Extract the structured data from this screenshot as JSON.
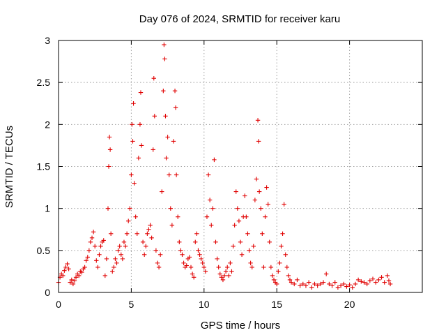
{
  "chart_data": {
    "type": "scatter",
    "title": "Day 076 of 2024, SRMTID for receiver karu",
    "xlabel": "GPS time / hours",
    "ylabel": "SRMTID / TECUs",
    "xlim": [
      0,
      25
    ],
    "ylim": [
      0,
      3
    ],
    "xticks": [
      0,
      5,
      10,
      15,
      20
    ],
    "xtick_labels": [
      "0",
      "5",
      "10",
      "15",
      "20"
    ],
    "yticks": [
      0,
      0.5,
      1,
      1.5,
      2,
      2.5,
      3
    ],
    "ytick_labels": [
      "0",
      "0.5",
      "1",
      "1.5",
      "2",
      "2.5",
      "3"
    ],
    "grid": true,
    "marker": "plus",
    "color": "#e00000",
    "series": [
      {
        "name": "karu",
        "points": [
          [
            0.0,
            0.12
          ],
          [
            0.1,
            0.18
          ],
          [
            0.2,
            0.22
          ],
          [
            0.3,
            0.2
          ],
          [
            0.4,
            0.26
          ],
          [
            0.5,
            0.3
          ],
          [
            0.6,
            0.34
          ],
          [
            0.7,
            0.28
          ],
          [
            0.8,
            0.12
          ],
          [
            0.9,
            0.15
          ],
          [
            1.0,
            0.1
          ],
          [
            1.1,
            0.14
          ],
          [
            1.2,
            0.18
          ],
          [
            1.3,
            0.22
          ],
          [
            1.4,
            0.2
          ],
          [
            1.5,
            0.25
          ],
          [
            1.6,
            0.24
          ],
          [
            1.7,
            0.28
          ],
          [
            1.8,
            0.3
          ],
          [
            1.9,
            0.38
          ],
          [
            2.0,
            0.42
          ],
          [
            2.1,
            0.5
          ],
          [
            2.2,
            0.6
          ],
          [
            2.3,
            0.65
          ],
          [
            2.4,
            0.72
          ],
          [
            2.5,
            0.55
          ],
          [
            2.6,
            0.38
          ],
          [
            2.7,
            0.3
          ],
          [
            2.8,
            0.45
          ],
          [
            2.9,
            0.55
          ],
          [
            3.0,
            0.6
          ],
          [
            3.1,
            0.62
          ],
          [
            3.2,
            0.2
          ],
          [
            3.3,
            0.4
          ],
          [
            3.4,
            1.0
          ],
          [
            3.45,
            1.5
          ],
          [
            3.5,
            1.85
          ],
          [
            3.55,
            1.7
          ],
          [
            3.6,
            0.7
          ],
          [
            3.7,
            0.25
          ],
          [
            3.8,
            0.3
          ],
          [
            3.9,
            0.4
          ],
          [
            4.0,
            0.35
          ],
          [
            4.1,
            0.5
          ],
          [
            4.2,
            0.55
          ],
          [
            4.3,
            0.45
          ],
          [
            4.4,
            0.4
          ],
          [
            4.5,
            0.6
          ],
          [
            4.6,
            0.55
          ],
          [
            4.7,
            0.7
          ],
          [
            4.8,
            0.85
          ],
          [
            4.9,
            1.0
          ],
          [
            5.0,
            1.4
          ],
          [
            5.05,
            2.0
          ],
          [
            5.1,
            1.8
          ],
          [
            5.15,
            2.25
          ],
          [
            5.2,
            1.3
          ],
          [
            5.3,
            0.9
          ],
          [
            5.4,
            0.7
          ],
          [
            5.5,
            1.6
          ],
          [
            5.6,
            2.0
          ],
          [
            5.65,
            2.38
          ],
          [
            5.7,
            1.75
          ],
          [
            5.8,
            0.6
          ],
          [
            5.9,
            0.45
          ],
          [
            6.0,
            0.55
          ],
          [
            6.1,
            0.7
          ],
          [
            6.2,
            0.75
          ],
          [
            6.3,
            0.8
          ],
          [
            6.4,
            0.65
          ],
          [
            6.5,
            1.7
          ],
          [
            6.55,
            2.55
          ],
          [
            6.6,
            2.1
          ],
          [
            6.7,
            0.5
          ],
          [
            6.8,
            0.35
          ],
          [
            6.9,
            0.3
          ],
          [
            7.0,
            0.45
          ],
          [
            7.1,
            1.2
          ],
          [
            7.2,
            2.4
          ],
          [
            7.25,
            2.95
          ],
          [
            7.3,
            2.78
          ],
          [
            7.35,
            2.1
          ],
          [
            7.4,
            1.6
          ],
          [
            7.5,
            1.85
          ],
          [
            7.6,
            1.4
          ],
          [
            7.7,
            1.0
          ],
          [
            7.8,
            0.8
          ],
          [
            7.9,
            1.8
          ],
          [
            8.0,
            2.4
          ],
          [
            8.05,
            2.2
          ],
          [
            8.1,
            1.4
          ],
          [
            8.2,
            0.9
          ],
          [
            8.3,
            0.6
          ],
          [
            8.4,
            0.5
          ],
          [
            8.5,
            0.45
          ],
          [
            8.6,
            0.35
          ],
          [
            8.7,
            0.3
          ],
          [
            8.8,
            0.32
          ],
          [
            8.9,
            0.4
          ],
          [
            9.0,
            0.42
          ],
          [
            9.1,
            0.3
          ],
          [
            9.2,
            0.22
          ],
          [
            9.3,
            0.18
          ],
          [
            9.4,
            0.6
          ],
          [
            9.5,
            0.7
          ],
          [
            9.6,
            0.5
          ],
          [
            9.7,
            0.45
          ],
          [
            9.8,
            0.4
          ],
          [
            9.9,
            0.35
          ],
          [
            10.0,
            0.3
          ],
          [
            10.1,
            0.25
          ],
          [
            10.2,
            0.9
          ],
          [
            10.3,
            1.4
          ],
          [
            10.4,
            1.1
          ],
          [
            10.5,
            0.8
          ],
          [
            10.6,
            1.0
          ],
          [
            10.7,
            1.58
          ],
          [
            10.8,
            0.6
          ],
          [
            10.9,
            0.4
          ],
          [
            11.0,
            0.3
          ],
          [
            11.1,
            0.22
          ],
          [
            11.2,
            0.18
          ],
          [
            11.3,
            0.15
          ],
          [
            11.4,
            0.2
          ],
          [
            11.5,
            0.25
          ],
          [
            11.6,
            0.3
          ],
          [
            11.7,
            0.2
          ],
          [
            11.8,
            0.35
          ],
          [
            11.9,
            0.25
          ],
          [
            12.0,
            0.55
          ],
          [
            12.1,
            0.8
          ],
          [
            12.2,
            1.2
          ],
          [
            12.3,
            1.0
          ],
          [
            12.4,
            0.85
          ],
          [
            12.5,
            0.6
          ],
          [
            12.6,
            0.45
          ],
          [
            12.7,
            0.9
          ],
          [
            12.8,
            1.15
          ],
          [
            12.9,
            0.9
          ],
          [
            13.0,
            0.7
          ],
          [
            13.1,
            0.5
          ],
          [
            13.2,
            0.35
          ],
          [
            13.3,
            0.3
          ],
          [
            13.4,
            0.55
          ],
          [
            13.5,
            1.1
          ],
          [
            13.6,
            1.35
          ],
          [
            13.7,
            2.05
          ],
          [
            13.75,
            1.8
          ],
          [
            13.8,
            1.2
          ],
          [
            13.9,
            1.0
          ],
          [
            14.0,
            0.7
          ],
          [
            14.1,
            0.3
          ],
          [
            14.2,
            0.9
          ],
          [
            14.3,
            1.25
          ],
          [
            14.4,
            1.05
          ],
          [
            14.5,
            0.6
          ],
          [
            14.6,
            0.3
          ],
          [
            14.7,
            0.2
          ],
          [
            14.8,
            0.15
          ],
          [
            14.9,
            0.12
          ],
          [
            15.0,
            0.1
          ],
          [
            15.1,
            0.25
          ],
          [
            15.2,
            0.35
          ],
          [
            15.3,
            0.55
          ],
          [
            15.4,
            0.7
          ],
          [
            15.5,
            1.05
          ],
          [
            15.6,
            0.45
          ],
          [
            15.7,
            0.3
          ],
          [
            15.8,
            0.2
          ],
          [
            15.9,
            0.15
          ],
          [
            16.0,
            0.12
          ],
          [
            16.2,
            0.1
          ],
          [
            16.4,
            0.15
          ],
          [
            16.6,
            0.08
          ],
          [
            16.8,
            0.1
          ],
          [
            17.0,
            0.08
          ],
          [
            17.2,
            0.12
          ],
          [
            17.4,
            0.06
          ],
          [
            17.6,
            0.1
          ],
          [
            17.8,
            0.08
          ],
          [
            18.0,
            0.1
          ],
          [
            18.2,
            0.12
          ],
          [
            18.4,
            0.22
          ],
          [
            18.6,
            0.1
          ],
          [
            18.8,
            0.08
          ],
          [
            19.0,
            0.12
          ],
          [
            19.2,
            0.06
          ],
          [
            19.4,
            0.08
          ],
          [
            19.6,
            0.1
          ],
          [
            19.8,
            0.07
          ],
          [
            20.0,
            0.09
          ],
          [
            20.2,
            0.06
          ],
          [
            20.4,
            0.1
          ],
          [
            20.6,
            0.15
          ],
          [
            20.8,
            0.13
          ],
          [
            21.0,
            0.12
          ],
          [
            21.2,
            0.1
          ],
          [
            21.4,
            0.14
          ],
          [
            21.6,
            0.16
          ],
          [
            21.8,
            0.12
          ],
          [
            22.0,
            0.15
          ],
          [
            22.2,
            0.18
          ],
          [
            22.4,
            0.12
          ],
          [
            22.6,
            0.2
          ],
          [
            22.7,
            0.14
          ],
          [
            22.8,
            0.1
          ]
        ]
      }
    ]
  }
}
